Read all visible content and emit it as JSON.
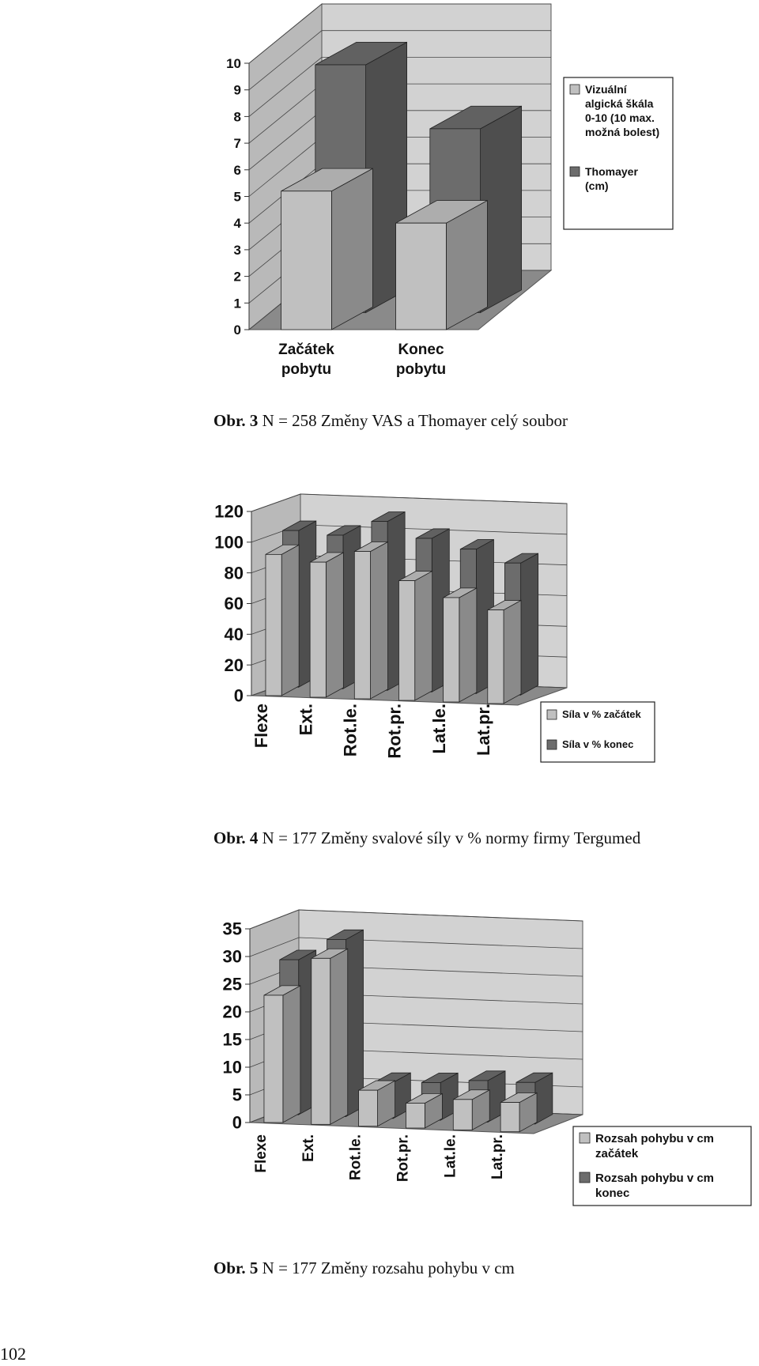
{
  "page_number": "102",
  "colors": {
    "front_series": "#c0c0c0",
    "back_series": "#6c6c6c",
    "wall": "#d2d2d2",
    "floor": "#8a8a8a"
  },
  "chart_data": [
    {
      "type": "bar",
      "caption_prefix": "Obr. 3",
      "caption_text": "N = 258 Změny VAS a Thomayer celý soubor",
      "categories": [
        "Začátek pobytu",
        "Konec pobytu"
      ],
      "category_lines": [
        [
          "Začátek",
          "pobytu"
        ],
        [
          "Konec",
          "pobytu"
        ]
      ],
      "ylim": [
        0,
        10
      ],
      "yticks": [
        "0",
        "1",
        "2",
        "3",
        "4",
        "5",
        "6",
        "7",
        "8",
        "9",
        "10"
      ],
      "grid": true,
      "legend_position": "right",
      "series": [
        {
          "name": "Vizuální algická škála 0-10 (10 max. možná bolest)",
          "legend_lines": [
            "Vizuální",
            "algická škála",
            "0-10 (10 max.",
            "možná bolest)"
          ],
          "values": [
            5.2,
            4.0
          ]
        },
        {
          "name": "Thomayer (cm)",
          "legend_lines": [
            "Thomayer",
            "(cm)"
          ],
          "values": [
            9.3,
            6.9
          ]
        }
      ]
    },
    {
      "type": "bar",
      "caption_prefix": "Obr. 4",
      "caption_text": "N = 177 Změny svalové síly v % normy firmy Tergumed",
      "categories": [
        "Flexe",
        "Ext.",
        "Rot.le.",
        "Rot.pr.",
        "Lat.le.",
        "Lat.pr."
      ],
      "ylim": [
        0,
        120
      ],
      "yticks": [
        "0",
        "20",
        "40",
        "60",
        "80",
        "100",
        "120"
      ],
      "grid": true,
      "legend_position": "bottom-right",
      "series": [
        {
          "name": "Síla v % začátek",
          "legend_lines": [
            "Síla v % začátek"
          ],
          "values": [
            92,
            88,
            96,
            78,
            68,
            61
          ]
        },
        {
          "name": "Síla v % konec",
          "legend_lines": [
            "Síla v % konec"
          ],
          "values": [
            102,
            100,
            110,
            100,
            94,
            86
          ]
        }
      ]
    },
    {
      "type": "bar",
      "caption_prefix": "Obr. 5",
      "caption_text": "N = 177 Změny rozsahu pohybu v cm",
      "categories": [
        "Flexe",
        "Ext.",
        "Rot.le.",
        "Rot.pr.",
        "Lat.le.",
        "Lat.pr."
      ],
      "ylim": [
        0,
        35
      ],
      "yticks": [
        "0",
        "5",
        "10",
        "15",
        "20",
        "25",
        "30",
        "35"
      ],
      "grid": true,
      "legend_position": "bottom-right",
      "series": [
        {
          "name": "Rozsah pohybu v cm začátek",
          "legend_lines": [
            "Rozsah pohybu v cm",
            "začátek"
          ],
          "values": [
            23,
            30,
            6.5,
            4.5,
            5.5,
            5.3
          ]
        },
        {
          "name": "Rozsah pohybu v cm konec",
          "legend_lines": [
            "Rozsah pohybu v cm",
            "konec"
          ],
          "values": [
            28,
            32,
            6.5,
            6.8,
            7.5,
            7.5
          ]
        }
      ]
    }
  ]
}
